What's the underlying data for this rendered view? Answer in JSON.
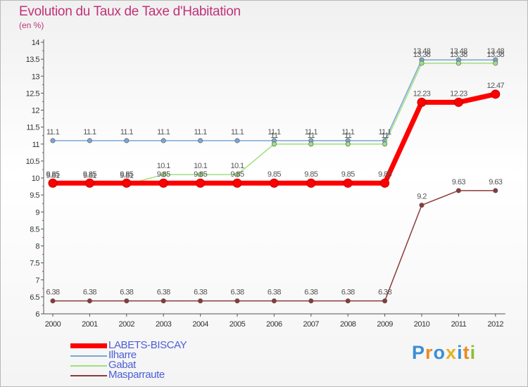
{
  "header": {
    "title": "Evolution du Taux de Taxe d'Habitation",
    "unit": "(en %)"
  },
  "logo": {
    "text": "Proxiti",
    "letters": [
      {
        "ch": "P",
        "color": "#3a8fd6"
      },
      {
        "ch": "r",
        "color": "#e98a22"
      },
      {
        "ch": "o",
        "color": "#3a8fd6"
      },
      {
        "ch": "x",
        "color": "#e8b21e"
      },
      {
        "ch": "i",
        "color": "#3a8fd6"
      },
      {
        "ch": "t",
        "color": "#e98a22"
      },
      {
        "ch": "i",
        "color": "#8bbf38"
      }
    ]
  },
  "chart_data": {
    "type": "line",
    "title": "Evolution du Taux de Taxe d'Habitation",
    "ylabel": "(en %)",
    "xlabel": "",
    "x": [
      "2000",
      "2001",
      "2002",
      "2003",
      "2004",
      "2005",
      "2006",
      "2007",
      "2008",
      "2009",
      "2010",
      "2011",
      "2012"
    ],
    "ylim": [
      6,
      14
    ],
    "yticks": [
      "6",
      "6.5",
      "7",
      "7.5",
      "8",
      "8.5",
      "9",
      "9.5",
      "10",
      "10.5",
      "11",
      "11.5",
      "12",
      "12.5",
      "13",
      "13.5",
      "14"
    ],
    "grid": false,
    "legend_position": "bottom-left",
    "series": [
      {
        "name": "LABETS-BISCAY",
        "color": "#ff0000",
        "values": [
          9.85,
          9.85,
          9.85,
          9.85,
          9.85,
          9.85,
          9.85,
          9.85,
          9.85,
          9.85,
          12.23,
          12.23,
          12.47
        ],
        "labels": [
          "9.85",
          "9.85",
          "9.85",
          "9.85",
          "9.85",
          "9.85",
          "9.85",
          "9.85",
          "9.85",
          "9.85",
          "12.23",
          "12.23",
          "12.47"
        ]
      },
      {
        "name": "Ilharre",
        "color": "#7aa6d4",
        "values": [
          11.1,
          11.1,
          11.1,
          11.1,
          11.1,
          11.1,
          11.1,
          11.1,
          11.1,
          11.1,
          13.48,
          13.48,
          13.48
        ],
        "labels": [
          "11.1",
          "11.1",
          "11.1",
          "11.1",
          "11.1",
          "11.1",
          "11.1",
          "11.1",
          "11.1",
          "11.1",
          "13.48",
          "13.48",
          "13.48"
        ]
      },
      {
        "name": "Gabat",
        "color": "#9fe07d",
        "values": [
          9.81,
          9.81,
          9.81,
          10.1,
          10.1,
          10.1,
          11,
          11,
          11,
          11,
          13.38,
          13.38,
          13.38
        ],
        "labels": [
          "9.81",
          "9.81",
          "9.81",
          "10.1",
          "10.1",
          "10.1",
          "11",
          "11",
          "11",
          "11",
          "13.38",
          "13.38",
          "13.38"
        ]
      },
      {
        "name": "Masparraute",
        "color": "#8a3a3a",
        "values": [
          6.38,
          6.38,
          6.38,
          6.38,
          6.38,
          6.38,
          6.38,
          6.38,
          6.38,
          6.38,
          9.2,
          9.63,
          9.63
        ],
        "labels": [
          "6.38",
          "6.38",
          "6.38",
          "6.38",
          "6.38",
          "6.38",
          "6.38",
          "6.38",
          "6.38",
          "6.38",
          "9.2",
          "9.63",
          "9.63"
        ]
      }
    ]
  }
}
